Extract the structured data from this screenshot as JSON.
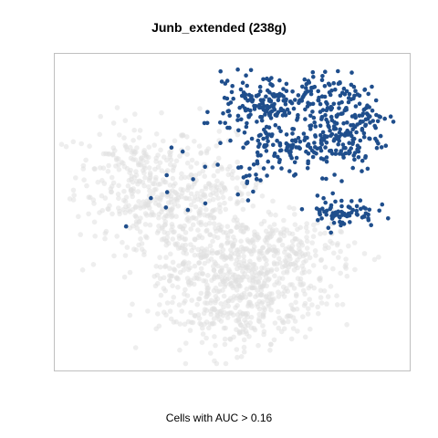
{
  "chart_data": {
    "type": "scatter",
    "title": "Junb_extended (238g)",
    "caption": "Cells with AUC > 0.16",
    "xlabel": "",
    "ylabel": "",
    "axes_visible": false,
    "grid": false,
    "legend": "none",
    "frame": true,
    "xlim": [
      0,
      100
    ],
    "ylim": [
      0,
      100
    ],
    "series": [
      {
        "role": "cells below AUC threshold",
        "color": "#e0e0e0",
        "opacity": 0.55,
        "clusters": [
          {
            "cx": 22,
            "cy": 62,
            "sx": 9,
            "sy": 9,
            "n": 230
          },
          {
            "cx": 44,
            "cy": 58,
            "sx": 8,
            "sy": 8,
            "n": 140
          },
          {
            "cx": 32,
            "cy": 48,
            "sx": 10,
            "sy": 6,
            "n": 150
          },
          {
            "cx": 55,
            "cy": 28,
            "sx": 12,
            "sy": 9,
            "n": 420
          },
          {
            "cx": 50,
            "cy": 14,
            "sx": 10,
            "sy": 5,
            "n": 130
          },
          {
            "cx": 40,
            "cy": 30,
            "sx": 9,
            "sy": 6,
            "n": 110
          },
          {
            "cx": 70,
            "cy": 38,
            "sx": 8,
            "sy": 5,
            "n": 90
          },
          {
            "cx": 55,
            "cy": 42,
            "sx": 8,
            "sy": 4,
            "n": 60
          }
        ]
      },
      {
        "role": "cells with AUC > 0.16",
        "color": "#1f4e8c",
        "opacity": 1,
        "clusters": [
          {
            "cx": 54,
            "cy": 84,
            "sx": 5,
            "sy": 5,
            "n": 70
          },
          {
            "cx": 62,
            "cy": 88,
            "sx": 5,
            "sy": 4,
            "n": 80
          },
          {
            "cx": 73,
            "cy": 86,
            "sx": 6,
            "sy": 5,
            "n": 90
          },
          {
            "cx": 86,
            "cy": 82,
            "sx": 5,
            "sy": 5,
            "n": 80
          },
          {
            "cx": 80,
            "cy": 73,
            "sx": 7,
            "sy": 5,
            "n": 130
          },
          {
            "cx": 63,
            "cy": 71,
            "sx": 6,
            "sy": 4,
            "n": 70
          },
          {
            "cx": 82,
            "cy": 50,
            "sx": 5,
            "sy": 2.5,
            "n": 75
          },
          {
            "cx": 55,
            "cy": 60,
            "sx": 4,
            "sy": 4,
            "n": 12
          },
          {
            "cx": 34,
            "cy": 62,
            "sx": 10,
            "sy": 7,
            "n": 14
          }
        ]
      }
    ]
  }
}
